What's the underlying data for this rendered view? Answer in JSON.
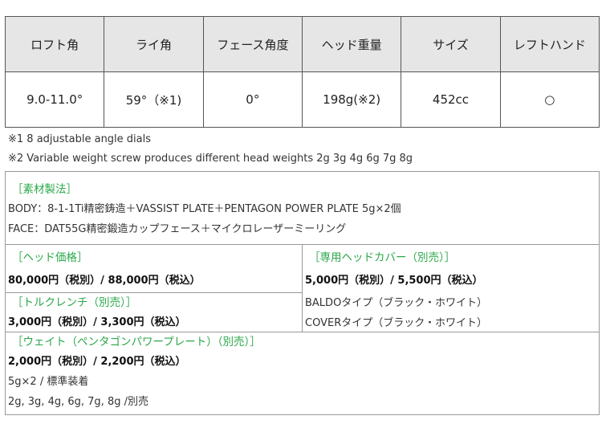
{
  "spec_table": {
    "headers": [
      "ロフト角",
      "ライ角",
      "フェース角度",
      "ヘッド重量",
      "サイズ",
      "レフトハンド"
    ],
    "values": [
      "9.0-11.0°",
      "59°（※1)",
      "0°",
      "198g(※2)",
      "452cc",
      "○"
    ]
  },
  "notes": [
    "※1  8 adjustable angle dials",
    "※2 Variable weight screw produces different head weights 2g 3g 4g 6g 7g 8g"
  ],
  "materials": {
    "title": "［素材製法］",
    "body": "BODY：8-1-1Ti精密鋳造＋VASSIST PLATE＋PENTAGON POWER PLATE 5g×2個",
    "face": "FACE：DAT55G精密鍛造カップフェース＋マイクロレーザーミーリング"
  },
  "head_price": {
    "title": "［ヘッド価格］",
    "price": "80,000円（税別）/ 88,000円（税込）"
  },
  "torque_wrench": {
    "title": "［トルクレンチ（別売）］",
    "price": "3,000円（税別）/ 3,300円（税込）"
  },
  "head_cover": {
    "title": "［専用ヘッドカバー（別売）］",
    "price": "5,000円（税別）/ 5,500円（税込）",
    "types": [
      "BALDOタイプ（ブラック・ホワイト）",
      "COVERタイプ（ブラック・ホワイト）"
    ]
  },
  "weight": {
    "title": "［ウェイト（ペンタゴンパワープレート）（別売）］",
    "price": "2,000円（税別）/ 2,200円（税込）",
    "standard": "5g×2 / 標準装着",
    "options": "2g, 3g, 4g, 6g, 7g, 8g /別売"
  },
  "colors": {
    "accent": "#2aa84a",
    "header_bg": "#e6e6e6"
  }
}
